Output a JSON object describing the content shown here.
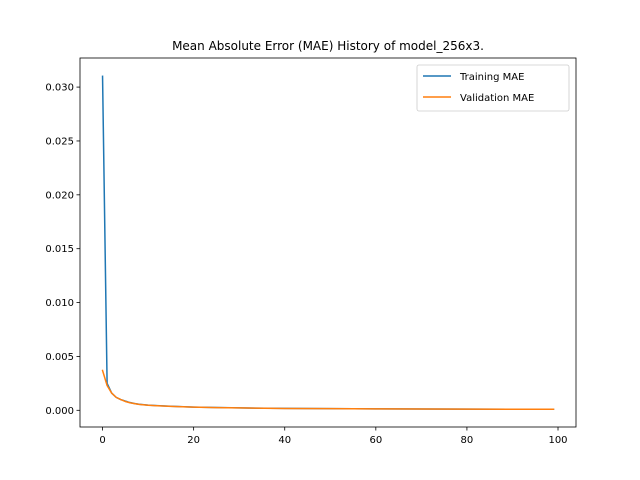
{
  "chart_data": {
    "type": "line",
    "title": "Mean Absolute Error (MAE) History of model_256x3.",
    "xlabel": "",
    "ylabel": "",
    "xlim": [
      -4.95,
      103.95
    ],
    "ylim": [
      -0.00155,
      0.0327
    ],
    "x_ticks": [
      0,
      20,
      40,
      60,
      80,
      100
    ],
    "x_tick_labels": [
      "0",
      "20",
      "40",
      "60",
      "80",
      "100"
    ],
    "y_ticks": [
      0.0,
      0.005,
      0.01,
      0.015,
      0.02,
      0.025,
      0.03
    ],
    "y_tick_labels": [
      "0.000",
      "0.005",
      "0.010",
      "0.015",
      "0.020",
      "0.025",
      "0.030"
    ],
    "grid": false,
    "legend_position": "top-right",
    "colors": {
      "Training MAE": "#1f77b4",
      "Validation MAE": "#ff7f0e"
    },
    "series": [
      {
        "name": "Training MAE",
        "x": [
          0,
          1,
          2,
          3,
          4,
          5,
          6,
          7,
          8,
          10,
          12,
          15,
          20,
          25,
          30,
          40,
          50,
          60,
          70,
          80,
          90,
          99
        ],
        "values": [
          0.031,
          0.0025,
          0.0016,
          0.0012,
          0.001,
          0.00085,
          0.00072,
          0.00063,
          0.00056,
          0.00048,
          0.00043,
          0.00037,
          0.0003,
          0.00026,
          0.00022,
          0.00018,
          0.00015,
          0.00013,
          0.00012,
          0.00011,
          0.0001,
          0.0001
        ]
      },
      {
        "name": "Validation MAE",
        "x": [
          0,
          1,
          2,
          3,
          4,
          5,
          6,
          7,
          8,
          10,
          12,
          15,
          20,
          25,
          30,
          40,
          50,
          60,
          70,
          80,
          90,
          99
        ],
        "values": [
          0.0037,
          0.0023,
          0.0016,
          0.0012,
          0.001,
          0.00082,
          0.0007,
          0.00062,
          0.00055,
          0.00047,
          0.00042,
          0.00036,
          0.0003,
          0.00025,
          0.00022,
          0.00017,
          0.00015,
          0.00013,
          0.00012,
          0.00011,
          0.0001,
          0.0001
        ]
      }
    ]
  }
}
